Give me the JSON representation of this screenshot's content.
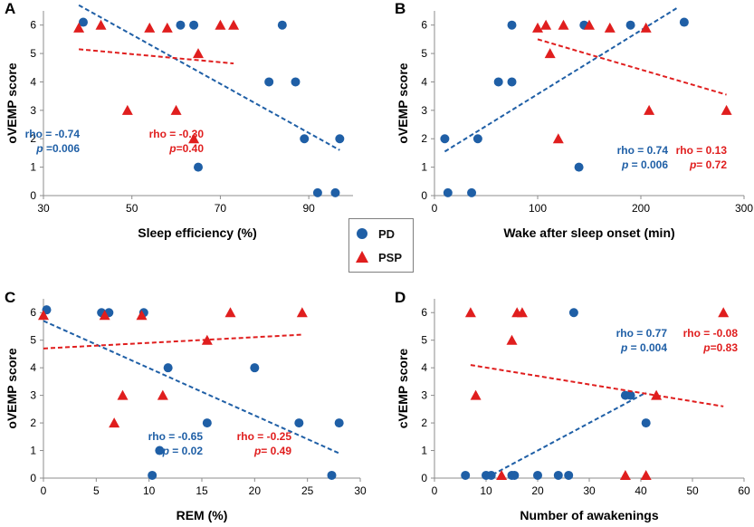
{
  "legend": {
    "pd_label": "PD",
    "psp_label": "PSP",
    "pd_color": "#1f5fa6",
    "psp_color": "#e01e1e"
  },
  "chart_data": [
    {
      "panel": "A",
      "type": "scatter",
      "xlabel": "Sleep efficiency (%)",
      "ylabel": "oVEMP score",
      "xlim": [
        30,
        100
      ],
      "ylim": [
        0,
        6.5
      ],
      "xticks": [
        30,
        50,
        70,
        90
      ],
      "yticks": [
        0,
        1,
        2,
        3,
        4,
        5,
        6
      ],
      "series": [
        {
          "name": "PD",
          "marker": "circle",
          "points": [
            [
              39,
              6.1
            ],
            [
              61,
              6
            ],
            [
              64,
              6
            ],
            [
              84,
              6
            ],
            [
              81,
              4
            ],
            [
              87,
              4
            ],
            [
              89,
              2
            ],
            [
              97,
              2
            ],
            [
              65,
              1
            ],
            [
              92,
              0.1
            ],
            [
              96,
              0.1
            ]
          ],
          "trend": [
            [
              38,
              6.7
            ],
            [
              97,
              1.6
            ]
          ]
        },
        {
          "name": "PSP",
          "marker": "triangle",
          "points": [
            [
              38,
              5.9
            ],
            [
              43,
              6
            ],
            [
              54,
              5.9
            ],
            [
              58,
              5.9
            ],
            [
              70,
              6
            ],
            [
              73,
              6
            ],
            [
              65,
              5
            ],
            [
              49,
              3
            ],
            [
              60,
              3
            ],
            [
              64,
              2
            ]
          ],
          "trend": [
            [
              38,
              5.15
            ],
            [
              73,
              4.65
            ]
          ]
        }
      ],
      "annotations": {
        "pd": {
          "rho": "rho = -0.74",
          "p": "p =0.006"
        },
        "psp": {
          "rho": "rho = -0.30",
          "p": "p=0.40"
        }
      }
    },
    {
      "panel": "B",
      "type": "scatter",
      "xlabel": "Wake after sleep onset (min)",
      "ylabel": "oVEMP score",
      "xlim": [
        0,
        300
      ],
      "ylim": [
        0,
        6.5
      ],
      "xticks": [
        0,
        100,
        200,
        300
      ],
      "yticks": [
        0,
        1,
        2,
        3,
        4,
        5,
        6
      ],
      "series": [
        {
          "name": "PD",
          "marker": "circle",
          "points": [
            [
              75,
              6
            ],
            [
              145,
              6
            ],
            [
              190,
              6
            ],
            [
              242,
              6.1
            ],
            [
              62,
              4
            ],
            [
              75,
              4
            ],
            [
              10,
              2
            ],
            [
              42,
              2
            ],
            [
              140,
              1
            ],
            [
              13,
              0.1
            ],
            [
              36,
              0.1
            ]
          ],
          "trend": [
            [
              10,
              1.55
            ],
            [
              235,
              6.6
            ]
          ]
        },
        {
          "name": "PSP",
          "marker": "triangle",
          "points": [
            [
              100,
              5.9
            ],
            [
              108,
              6
            ],
            [
              125,
              6
            ],
            [
              150,
              6
            ],
            [
              170,
              5.9
            ],
            [
              205,
              5.9
            ],
            [
              112,
              5
            ],
            [
              120,
              2
            ],
            [
              208,
              3
            ],
            [
              283,
              3
            ]
          ],
          "trend": [
            [
              100,
              5.5
            ],
            [
              283,
              3.55
            ]
          ]
        }
      ],
      "annotations": {
        "pd": {
          "rho": "rho = 0.74",
          "p": "p = 0.006"
        },
        "psp": {
          "rho": "rho = 0.13",
          "p": "p= 0.72"
        }
      }
    },
    {
      "panel": "C",
      "type": "scatter",
      "xlabel": "REM (%)",
      "ylabel": "oVEMP score",
      "xlim": [
        0,
        30
      ],
      "ylim": [
        0,
        6.5
      ],
      "xticks": [
        0,
        5,
        10,
        15,
        20,
        25,
        30
      ],
      "yticks": [
        0,
        1,
        2,
        3,
        4,
        5,
        6
      ],
      "series": [
        {
          "name": "PD",
          "marker": "circle",
          "points": [
            [
              0.3,
              6.1
            ],
            [
              5.5,
              6
            ],
            [
              6.2,
              6
            ],
            [
              9.5,
              6
            ],
            [
              11.8,
              4
            ],
            [
              20,
              4
            ],
            [
              15.5,
              2
            ],
            [
              24.2,
              2
            ],
            [
              28,
              2
            ],
            [
              11,
              1
            ],
            [
              10.3,
              0.1
            ],
            [
              27.3,
              0.1
            ]
          ],
          "trend": [
            [
              0,
              5.7
            ],
            [
              28,
              0.9
            ]
          ]
        },
        {
          "name": "PSP",
          "marker": "triangle",
          "points": [
            [
              0,
              5.9
            ],
            [
              5.8,
              5.9
            ],
            [
              9.3,
              5.9
            ],
            [
              17.7,
              6
            ],
            [
              24.5,
              6
            ],
            [
              15.5,
              5
            ],
            [
              7.5,
              3
            ],
            [
              11.3,
              3
            ],
            [
              6.7,
              2
            ]
          ],
          "trend": [
            [
              0,
              4.7
            ],
            [
              24.5,
              5.2
            ]
          ]
        }
      ],
      "annotations": {
        "pd": {
          "rho": "rho = -0.65",
          "p": "p = 0.02"
        },
        "psp": {
          "rho": "rho = -0.25",
          "p": "p= 0.49"
        }
      }
    },
    {
      "panel": "D",
      "type": "scatter",
      "xlabel": "Number of awakenings",
      "ylabel": "cVEMP score",
      "xlim": [
        0,
        60
      ],
      "ylim": [
        0,
        6.5
      ],
      "xticks": [
        0,
        10,
        20,
        30,
        40,
        50,
        60
      ],
      "yticks": [
        0,
        1,
        2,
        3,
        4,
        5,
        6
      ],
      "series": [
        {
          "name": "PD",
          "marker": "circle",
          "points": [
            [
              27,
              6
            ],
            [
              37,
              3
            ],
            [
              38,
              3
            ],
            [
              41,
              2
            ],
            [
              6,
              0.1
            ],
            [
              10,
              0.1
            ],
            [
              11,
              0.1
            ],
            [
              15,
              0.1
            ],
            [
              15.5,
              0.1
            ],
            [
              20,
              0.1
            ],
            [
              24,
              0.1
            ],
            [
              26,
              0.1
            ]
          ],
          "trend": [
            [
              10,
              0
            ],
            [
              41,
              3.1
            ]
          ]
        },
        {
          "name": "PSP",
          "marker": "triangle",
          "points": [
            [
              7,
              6
            ],
            [
              16,
              6
            ],
            [
              17,
              6
            ],
            [
              56,
              6
            ],
            [
              15,
              5
            ],
            [
              8,
              3
            ],
            [
              43,
              3
            ],
            [
              13,
              0.1
            ],
            [
              37,
              0.1
            ],
            [
              41,
              0.1
            ]
          ],
          "trend": [
            [
              7,
              4.1
            ],
            [
              56,
              2.6
            ]
          ]
        }
      ],
      "annotations": {
        "pd": {
          "rho": "rho = 0.77",
          "p": "p = 0.004"
        },
        "psp": {
          "rho": "rho = -0.08",
          "p": "p=0.83"
        }
      }
    }
  ]
}
